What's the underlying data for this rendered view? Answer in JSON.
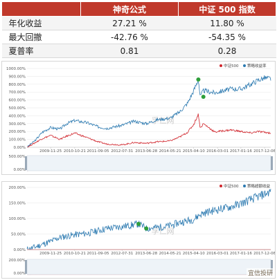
{
  "table": {
    "headers": [
      "",
      "神奇公式",
      "中证 500 指数"
    ],
    "rows": [
      {
        "metric": "年化收益",
        "formula": "27.21 %",
        "index": "11.80 %"
      },
      {
        "metric": "最大回撤",
        "formula": "-42.76 %",
        "index": "-54.35 %"
      },
      {
        "metric": "夏普率",
        "formula": "0.81",
        "index": "0.28"
      }
    ]
  },
  "watermark": "孚仁网",
  "brand": "宜信投研",
  "colors": {
    "header_bg": "#c0392b",
    "benchmark": "#d0232a",
    "strategy": "#2b79b0",
    "marker": "#2e9e3a"
  },
  "chart_data": [
    {
      "type": "line",
      "legend": {
        "position": "top-right",
        "items": [
          "中证500",
          "策略收益率"
        ]
      },
      "x_ticks": [
        "2009-11-25",
        "2010-10-21",
        "2011-09-05",
        "2012-07-31",
        "2013-06-28",
        "2014-05-21",
        "2015-04-10",
        "2016-03-01",
        "2017-01-16",
        "2017-12-06"
      ],
      "y_ticks": [
        "0.00%",
        "100.00%",
        "200.00%",
        "300.00%",
        "400.00%",
        "500.00%",
        "600.00%",
        "700.00%",
        "800.00%",
        "900.00%",
        "1000.00%"
      ],
      "ylim": [
        0,
        1000
      ],
      "grid": true,
      "series": [
        {
          "name": "策略收益率",
          "color": "#2b79b0",
          "x": [
            "2009-01-05",
            "2009-05-01",
            "2009-08-01",
            "2009-11-25",
            "2010-04-01",
            "2010-07-01",
            "2010-10-21",
            "2011-04-15",
            "2011-09-05",
            "2012-01-05",
            "2012-07-31",
            "2013-01-15",
            "2013-06-28",
            "2013-12-01",
            "2014-05-21",
            "2014-10-01",
            "2015-01-15",
            "2015-04-10",
            "2015-06-12",
            "2015-07-08",
            "2015-08-20",
            "2016-01-28",
            "2016-03-01",
            "2016-09-01",
            "2017-01-16",
            "2017-06-01",
            "2017-09-01",
            "2017-12-06",
            "2018-03-01"
          ],
          "y": [
            0,
            90,
            190,
            250,
            230,
            300,
            340,
            310,
            260,
            240,
            280,
            330,
            300,
            350,
            370,
            450,
            560,
            720,
            860,
            640,
            720,
            690,
            700,
            740,
            740,
            800,
            850,
            880,
            870
          ]
        },
        {
          "name": "中证500",
          "color": "#d0232a",
          "x": [
            "2009-01-05",
            "2009-05-01",
            "2009-08-01",
            "2009-11-25",
            "2010-04-01",
            "2010-07-01",
            "2010-10-21",
            "2011-04-15",
            "2011-09-05",
            "2012-01-05",
            "2012-07-31",
            "2013-01-15",
            "2013-06-28",
            "2013-12-01",
            "2014-05-21",
            "2014-10-01",
            "2015-01-15",
            "2015-04-10",
            "2015-06-12",
            "2015-07-08",
            "2015-08-20",
            "2016-01-28",
            "2016-03-01",
            "2016-09-01",
            "2017-01-16",
            "2017-06-01",
            "2017-09-01",
            "2017-12-06",
            "2018-03-01"
          ],
          "y": [
            0,
            60,
            110,
            150,
            100,
            140,
            180,
            120,
            70,
            40,
            30,
            60,
            50,
            70,
            80,
            130,
            190,
            290,
            420,
            240,
            300,
            190,
            200,
            220,
            200,
            180,
            200,
            190,
            180
          ]
        }
      ],
      "markers": [
        {
          "x": "2015-06-12",
          "y": 860
        },
        {
          "x": "2015-08-20",
          "y": 640
        }
      ],
      "navigator": {
        "y_ticks": [
          "0.00%",
          "500.00%"
        ]
      }
    },
    {
      "type": "line",
      "legend": {
        "position": "top-right",
        "items": [
          "中证500",
          "策略超额收益"
        ]
      },
      "x_ticks": [
        "2009-11-25",
        "2010-10-21",
        "2011-09-05",
        "2012-07-31",
        "2013-06-28",
        "2014-05-21",
        "2015-04-10",
        "2016-03-01",
        "2017-01-16",
        "2017-12-06"
      ],
      "y_ticks": [
        "0.00%",
        "50.00%",
        "100.00%",
        "150.00%",
        "200.00%"
      ],
      "ylim": [
        0,
        230
      ],
      "grid": true,
      "series": [
        {
          "name": "策略超额收益",
          "color": "#2b79b0",
          "x": [
            "2009-01-05",
            "2009-05-01",
            "2009-11-25",
            "2010-04-01",
            "2010-10-21",
            "2011-04-15",
            "2011-09-05",
            "2012-01-05",
            "2012-07-31",
            "2013-01-15",
            "2013-03-15",
            "2013-06-28",
            "2013-12-01",
            "2014-05-21",
            "2014-10-01",
            "2015-04-10",
            "2015-07-08",
            "2015-10-01",
            "2016-03-01",
            "2016-09-01",
            "2017-01-16",
            "2017-06-01",
            "2017-12-06",
            "2018-03-01"
          ],
          "y": [
            0,
            10,
            30,
            45,
            55,
            60,
            70,
            78,
            85,
            92,
            95,
            78,
            82,
            88,
            100,
            112,
            130,
            138,
            148,
            158,
            170,
            185,
            205,
            215
          ]
        },
        {
          "name": "中证500",
          "color": "#d0232a",
          "x": [
            "2009-01-05",
            "2018-03-01"
          ],
          "y": [
            0,
            0
          ]
        }
      ],
      "markers": [
        {
          "x": "2013-03-15",
          "y": 95
        },
        {
          "x": "2013-06-28",
          "y": 78
        }
      ],
      "navigator": {
        "y_ticks": [
          "0.00%",
          "200.00%"
        ]
      }
    }
  ]
}
